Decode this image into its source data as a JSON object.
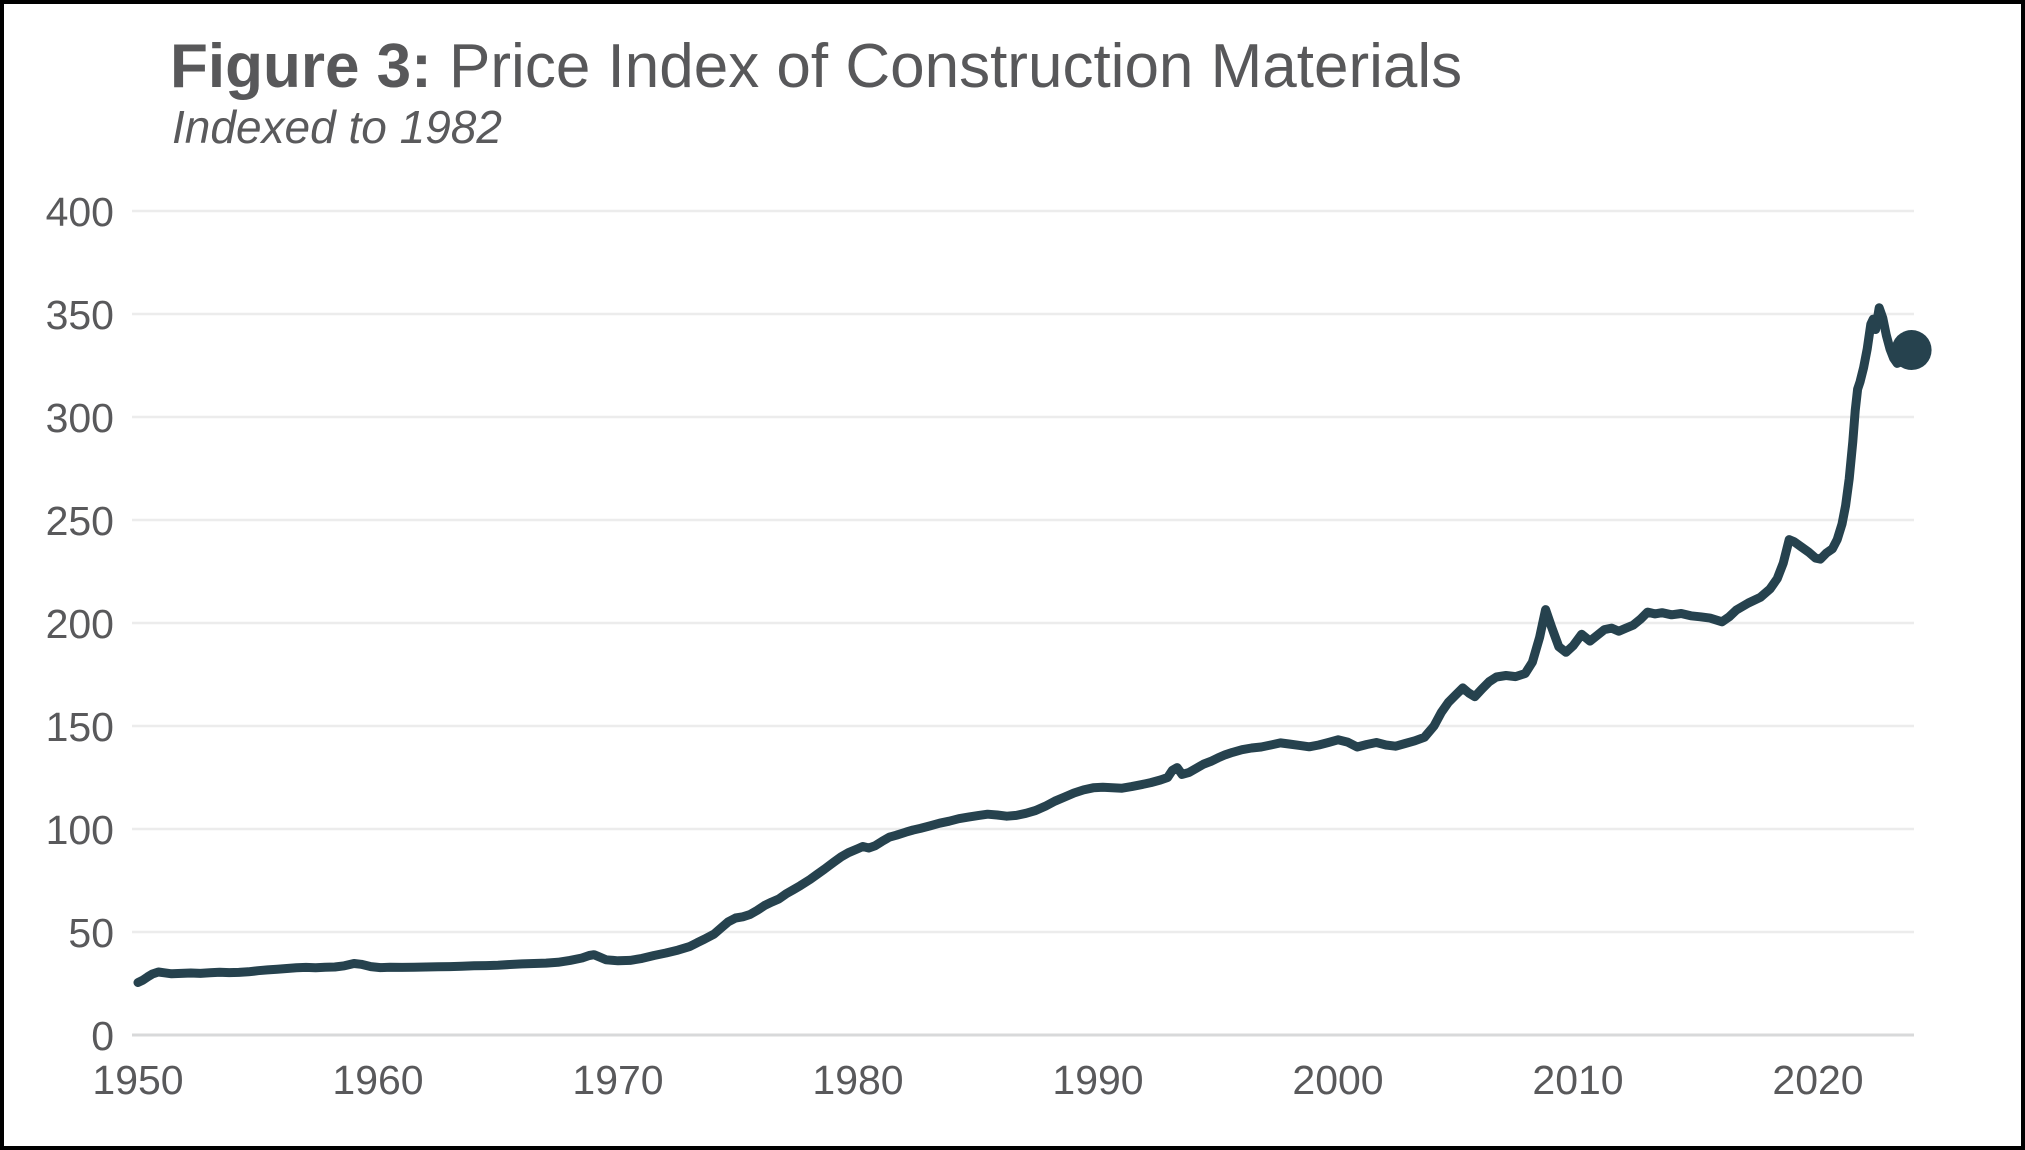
{
  "figure": {
    "title_prefix": "Figure 3:",
    "title_rest": " Price Index of Construction Materials",
    "subtitle": "Indexed to 1982"
  },
  "colors": {
    "line": "#26424e",
    "title_text": "#58585a",
    "axis_text": "#59595b",
    "gridline": "#ececec",
    "zero_line": "#d8d9da",
    "background": "#ffffff",
    "border": "#000000"
  },
  "chart_data": {
    "type": "line",
    "title": "Figure 3: Price Index of Construction Materials",
    "subtitle": "Indexed to 1982",
    "xlabel": "",
    "ylabel": "",
    "xlim": [
      1950,
      2024
    ],
    "ylim": [
      0,
      400
    ],
    "x_ticks": [
      1950,
      1960,
      1970,
      1980,
      1990,
      2000,
      2010,
      2020
    ],
    "y_ticks": [
      0,
      50,
      100,
      150,
      200,
      250,
      300,
      350,
      400
    ],
    "grid": "horizontal",
    "legend": "none",
    "end_marker": {
      "x": 2023.9,
      "y": 332.5
    },
    "series": [
      {
        "name": "Price Index of Construction Materials",
        "points": [
          [
            1950.0,
            25.5
          ],
          [
            1950.2,
            26.6
          ],
          [
            1950.4,
            28.2
          ],
          [
            1950.6,
            29.6
          ],
          [
            1950.85,
            30.6
          ],
          [
            1951.1,
            30.2
          ],
          [
            1951.4,
            29.7
          ],
          [
            1951.8,
            29.9
          ],
          [
            1952.2,
            30.1
          ],
          [
            1952.6,
            29.9
          ],
          [
            1953.0,
            30.2
          ],
          [
            1953.4,
            30.5
          ],
          [
            1953.8,
            30.3
          ],
          [
            1954.2,
            30.4
          ],
          [
            1954.6,
            30.7
          ],
          [
            1955.0,
            31.2
          ],
          [
            1955.4,
            31.6
          ],
          [
            1955.8,
            31.9
          ],
          [
            1956.2,
            32.3
          ],
          [
            1956.6,
            32.6
          ],
          [
            1957.0,
            32.8
          ],
          [
            1957.4,
            32.6
          ],
          [
            1957.8,
            32.9
          ],
          [
            1958.2,
            33.0
          ],
          [
            1958.6,
            33.6
          ],
          [
            1959.0,
            34.7
          ],
          [
            1959.3,
            34.3
          ],
          [
            1959.7,
            33.2
          ],
          [
            1960.1,
            32.7
          ],
          [
            1960.5,
            32.9
          ],
          [
            1961.0,
            32.8
          ],
          [
            1961.5,
            32.9
          ],
          [
            1962.0,
            33.0
          ],
          [
            1962.5,
            33.1
          ],
          [
            1963.0,
            33.2
          ],
          [
            1963.5,
            33.4
          ],
          [
            1964.0,
            33.6
          ],
          [
            1964.5,
            33.7
          ],
          [
            1965.0,
            33.9
          ],
          [
            1965.5,
            34.2
          ],
          [
            1966.0,
            34.5
          ],
          [
            1966.5,
            34.7
          ],
          [
            1967.0,
            34.9
          ],
          [
            1967.5,
            35.3
          ],
          [
            1968.0,
            36.2
          ],
          [
            1968.5,
            37.4
          ],
          [
            1968.8,
            38.6
          ],
          [
            1969.0,
            39.0
          ],
          [
            1969.2,
            38.0
          ],
          [
            1969.5,
            36.5
          ],
          [
            1969.8,
            36.2
          ],
          [
            1970.0,
            36.0
          ],
          [
            1970.5,
            36.2
          ],
          [
            1971.0,
            37.2
          ],
          [
            1971.5,
            38.6
          ],
          [
            1972.0,
            39.8
          ],
          [
            1972.5,
            41.2
          ],
          [
            1973.0,
            43.0
          ],
          [
            1973.3,
            44.8
          ],
          [
            1973.6,
            46.5
          ],
          [
            1974.0,
            49.0
          ],
          [
            1974.3,
            52.0
          ],
          [
            1974.6,
            55.0
          ],
          [
            1974.9,
            56.8
          ],
          [
            1975.2,
            57.4
          ],
          [
            1975.5,
            58.5
          ],
          [
            1975.8,
            60.5
          ],
          [
            1976.1,
            62.8
          ],
          [
            1976.4,
            64.5
          ],
          [
            1976.7,
            66.0
          ],
          [
            1977.0,
            68.5
          ],
          [
            1977.3,
            70.5
          ],
          [
            1977.6,
            72.5
          ],
          [
            1978.0,
            75.5
          ],
          [
            1978.3,
            78.0
          ],
          [
            1978.6,
            80.5
          ],
          [
            1979.0,
            84.0
          ],
          [
            1979.3,
            86.5
          ],
          [
            1979.6,
            88.5
          ],
          [
            1980.0,
            90.5
          ],
          [
            1980.2,
            91.5
          ],
          [
            1980.45,
            90.8
          ],
          [
            1980.7,
            91.8
          ],
          [
            1981.0,
            94.0
          ],
          [
            1981.3,
            96.0
          ],
          [
            1981.6,
            97.0
          ],
          [
            1982.0,
            98.5
          ],
          [
            1982.3,
            99.5
          ],
          [
            1982.6,
            100.3
          ],
          [
            1983.0,
            101.5
          ],
          [
            1983.4,
            102.8
          ],
          [
            1983.8,
            103.8
          ],
          [
            1984.2,
            105.0
          ],
          [
            1984.6,
            105.8
          ],
          [
            1985.0,
            106.5
          ],
          [
            1985.4,
            107.2
          ],
          [
            1985.8,
            106.8
          ],
          [
            1986.2,
            106.2
          ],
          [
            1986.6,
            106.6
          ],
          [
            1987.0,
            107.6
          ],
          [
            1987.4,
            109.0
          ],
          [
            1987.8,
            111.0
          ],
          [
            1988.2,
            113.5
          ],
          [
            1988.6,
            115.5
          ],
          [
            1989.0,
            117.5
          ],
          [
            1989.4,
            119.0
          ],
          [
            1989.8,
            120.0
          ],
          [
            1990.2,
            120.3
          ],
          [
            1990.6,
            120.0
          ],
          [
            1991.0,
            119.8
          ],
          [
            1991.4,
            120.6
          ],
          [
            1991.8,
            121.5
          ],
          [
            1992.2,
            122.5
          ],
          [
            1992.6,
            123.8
          ],
          [
            1992.9,
            125.0
          ],
          [
            1993.1,
            128.5
          ],
          [
            1993.3,
            129.8
          ],
          [
            1993.5,
            126.5
          ],
          [
            1993.8,
            127.5
          ],
          [
            1994.1,
            129.5
          ],
          [
            1994.4,
            131.5
          ],
          [
            1994.7,
            132.8
          ],
          [
            1995.0,
            134.5
          ],
          [
            1995.3,
            136.0
          ],
          [
            1995.6,
            137.2
          ],
          [
            1996.0,
            138.5
          ],
          [
            1996.4,
            139.3
          ],
          [
            1996.8,
            139.8
          ],
          [
            1997.2,
            140.8
          ],
          [
            1997.6,
            141.8
          ],
          [
            1998.0,
            141.2
          ],
          [
            1998.4,
            140.6
          ],
          [
            1998.8,
            139.9
          ],
          [
            1999.2,
            140.8
          ],
          [
            1999.6,
            142.0
          ],
          [
            2000.0,
            143.3
          ],
          [
            2000.4,
            142.2
          ],
          [
            2000.8,
            139.8
          ],
          [
            2001.2,
            141.0
          ],
          [
            2001.6,
            142.0
          ],
          [
            2002.0,
            140.8
          ],
          [
            2002.4,
            140.2
          ],
          [
            2002.8,
            141.5
          ],
          [
            2003.2,
            142.8
          ],
          [
            2003.6,
            144.5
          ],
          [
            2004.0,
            150.0
          ],
          [
            2004.3,
            156.5
          ],
          [
            2004.6,
            161.5
          ],
          [
            2004.9,
            165.0
          ],
          [
            2005.2,
            168.5
          ],
          [
            2005.45,
            166.0
          ],
          [
            2005.7,
            164.2
          ],
          [
            2006.0,
            168.0
          ],
          [
            2006.3,
            171.5
          ],
          [
            2006.6,
            173.8
          ],
          [
            2007.0,
            174.5
          ],
          [
            2007.4,
            174.0
          ],
          [
            2007.8,
            175.5
          ],
          [
            2008.1,
            181.0
          ],
          [
            2008.4,
            193.0
          ],
          [
            2008.65,
            206.5
          ],
          [
            2008.9,
            198.0
          ],
          [
            2009.2,
            188.5
          ],
          [
            2009.5,
            185.8
          ],
          [
            2009.8,
            189.0
          ],
          [
            2010.15,
            194.5
          ],
          [
            2010.5,
            191.2
          ],
          [
            2010.8,
            194.0
          ],
          [
            2011.1,
            196.8
          ],
          [
            2011.4,
            197.5
          ],
          [
            2011.7,
            196.0
          ],
          [
            2012.0,
            197.5
          ],
          [
            2012.3,
            199.0
          ],
          [
            2012.6,
            201.8
          ],
          [
            2012.9,
            205.3
          ],
          [
            2013.2,
            204.4
          ],
          [
            2013.5,
            205.0
          ],
          [
            2013.9,
            204.0
          ],
          [
            2014.3,
            204.6
          ],
          [
            2014.7,
            203.5
          ],
          [
            2015.1,
            203.0
          ],
          [
            2015.5,
            202.4
          ],
          [
            2016.0,
            200.6
          ],
          [
            2016.3,
            203.0
          ],
          [
            2016.6,
            206.3
          ],
          [
            2017.1,
            209.7
          ],
          [
            2017.6,
            212.5
          ],
          [
            2018.0,
            216.5
          ],
          [
            2018.3,
            221.5
          ],
          [
            2018.55,
            229.0
          ],
          [
            2018.8,
            240.5
          ],
          [
            2019.0,
            239.5
          ],
          [
            2019.3,
            237.0
          ],
          [
            2019.6,
            234.5
          ],
          [
            2019.9,
            231.5
          ],
          [
            2020.1,
            231.0
          ],
          [
            2020.35,
            234.0
          ],
          [
            2020.6,
            236.0
          ],
          [
            2020.8,
            240.5
          ],
          [
            2021.0,
            248.0
          ],
          [
            2021.15,
            257.0
          ],
          [
            2021.3,
            270.0
          ],
          [
            2021.45,
            288.0
          ],
          [
            2021.55,
            303.0
          ],
          [
            2021.65,
            313.5
          ],
          [
            2021.75,
            317.0
          ],
          [
            2021.9,
            324.0
          ],
          [
            2022.05,
            333.0
          ],
          [
            2022.2,
            345.0
          ],
          [
            2022.3,
            347.5
          ],
          [
            2022.4,
            342.5
          ],
          [
            2022.55,
            353.0
          ],
          [
            2022.7,
            348.0
          ],
          [
            2022.85,
            339.5
          ],
          [
            2023.0,
            333.0
          ],
          [
            2023.15,
            328.5
          ],
          [
            2023.3,
            326.0
          ],
          [
            2023.5,
            327.0
          ],
          [
            2023.7,
            329.5
          ],
          [
            2023.9,
            332.5
          ]
        ]
      }
    ]
  }
}
